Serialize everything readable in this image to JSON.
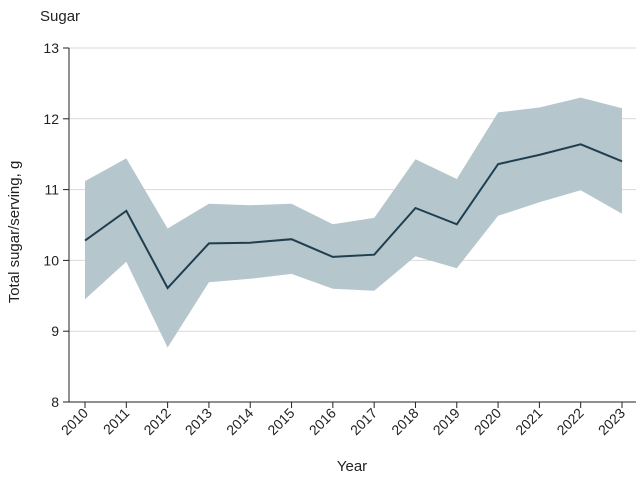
{
  "chart_data": {
    "type": "line",
    "title": "Sugar",
    "xlabel": "Year",
    "ylabel": "Total sugar/serving, g",
    "ylim": [
      8,
      13
    ],
    "yticks": [
      8,
      9,
      10,
      11,
      12,
      13
    ],
    "grid": true,
    "categories": [
      "2010",
      "2011",
      "2012",
      "2013",
      "2014",
      "2015",
      "2016",
      "2017",
      "2018",
      "2019",
      "2020",
      "2021",
      "2022",
      "2023"
    ],
    "series": [
      {
        "values": [
          10.28,
          10.7,
          9.61,
          10.24,
          10.25,
          10.3,
          10.05,
          10.08,
          10.74,
          10.51,
          11.36,
          11.49,
          11.64,
          11.4
        ]
      }
    ],
    "band": {
      "upper": [
        11.12,
        11.44,
        10.45,
        10.8,
        10.78,
        10.8,
        10.51,
        10.6,
        11.43,
        11.15,
        12.09,
        12.16,
        12.3,
        12.15
      ],
      "lower": [
        9.45,
        9.98,
        8.77,
        9.69,
        9.74,
        9.81,
        9.6,
        9.57,
        10.06,
        9.89,
        10.63,
        10.82,
        10.99,
        10.66
      ]
    },
    "colors": {
      "line": "#1f3e50",
      "band": "#b5c6cc"
    }
  }
}
